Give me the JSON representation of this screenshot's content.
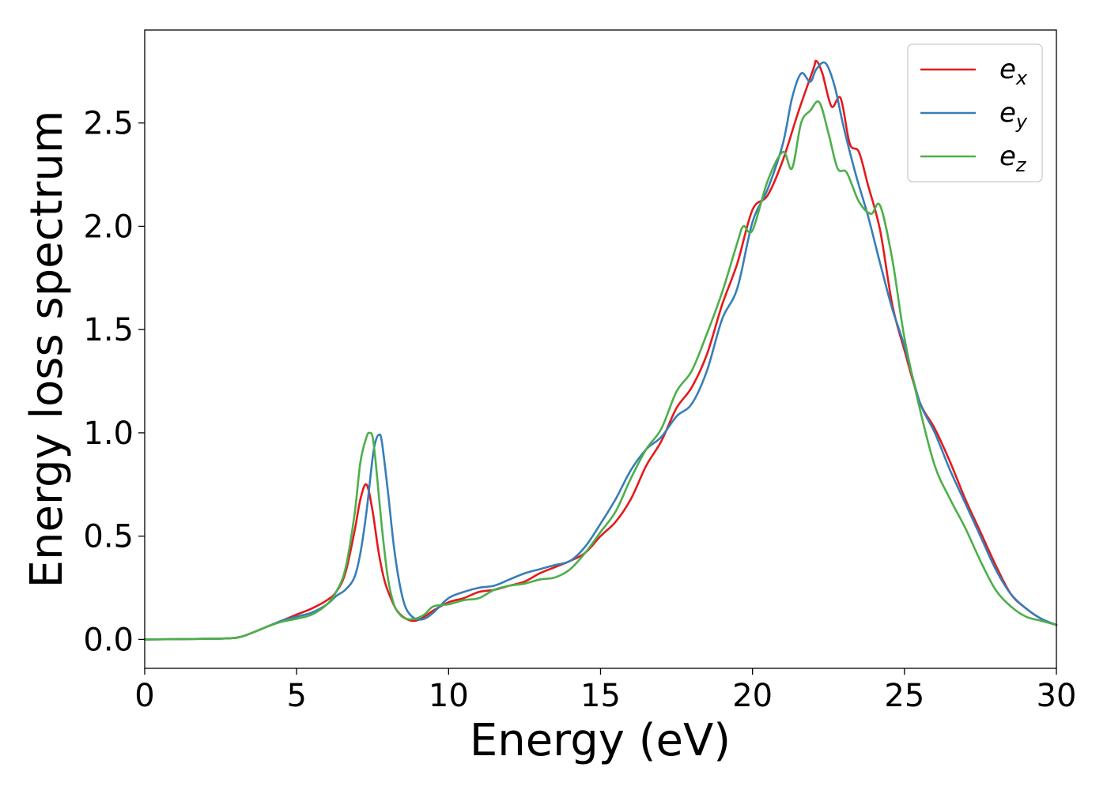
{
  "chart_data": {
    "type": "line",
    "xlabel": "Energy (eV)",
    "ylabel": "Energy loss spectrum",
    "xlim": [
      0,
      30
    ],
    "ylim": [
      -0.14,
      2.95
    ],
    "xticks": [
      0,
      5,
      10,
      15,
      20,
      25,
      30
    ],
    "xtick_labels": [
      "0",
      "5",
      "10",
      "15",
      "20",
      "25",
      "30"
    ],
    "yticks": [
      0.0,
      0.5,
      1.0,
      1.5,
      2.0,
      2.5
    ],
    "ytick_labels": [
      "0.0",
      "0.5",
      "1.0",
      "1.5",
      "2.0",
      "2.5"
    ],
    "grid": false,
    "legend_position": "top-right",
    "series": [
      {
        "name": "e_x",
        "label_base": "e",
        "label_sub": "x",
        "color": "#e41a1c",
        "x": [
          0,
          2,
          3,
          3.5,
          4,
          4.5,
          5,
          5.5,
          6,
          6.3,
          6.6,
          6.9,
          7.1,
          7.3,
          7.5,
          7.7,
          7.9,
          8.1,
          8.3,
          8.6,
          8.9,
          9.2,
          9.5,
          10,
          10.5,
          11,
          11.5,
          12,
          12.5,
          13,
          13.5,
          14,
          14.5,
          15,
          15.5,
          16,
          16.5,
          17,
          17.5,
          18,
          18.5,
          19,
          19.5,
          20,
          20.5,
          21,
          21.5,
          22,
          22.1,
          22.3,
          22.6,
          22.9,
          23.2,
          23.5,
          23.8,
          24.2,
          24.6,
          25,
          25.5,
          26,
          26.5,
          27,
          27.5,
          28,
          28.5,
          29,
          29.5,
          30
        ],
        "y": [
          0,
          0.003,
          0.008,
          0.03,
          0.06,
          0.09,
          0.12,
          0.15,
          0.19,
          0.23,
          0.32,
          0.52,
          0.68,
          0.75,
          0.62,
          0.42,
          0.28,
          0.2,
          0.14,
          0.1,
          0.09,
          0.11,
          0.14,
          0.18,
          0.2,
          0.23,
          0.24,
          0.26,
          0.28,
          0.32,
          0.35,
          0.38,
          0.42,
          0.5,
          0.57,
          0.68,
          0.84,
          0.96,
          1.12,
          1.22,
          1.38,
          1.62,
          1.82,
          2.08,
          2.15,
          2.32,
          2.55,
          2.76,
          2.8,
          2.74,
          2.58,
          2.62,
          2.4,
          2.36,
          2.2,
          1.98,
          1.62,
          1.4,
          1.15,
          1.02,
          0.86,
          0.68,
          0.52,
          0.36,
          0.22,
          0.15,
          0.1,
          0.07
        ]
      },
      {
        "name": "e_y",
        "label_base": "e",
        "label_sub": "y",
        "color": "#377eb8",
        "x": [
          0,
          2,
          3,
          3.5,
          4,
          4.5,
          5,
          5.5,
          6,
          6.3,
          6.6,
          6.9,
          7.1,
          7.3,
          7.5,
          7.6,
          7.7,
          7.8,
          8,
          8.2,
          8.4,
          8.6,
          8.9,
          9.2,
          9.5,
          10,
          10.5,
          11,
          11.5,
          12,
          12.5,
          13,
          13.5,
          14,
          14.5,
          15,
          15.5,
          16,
          16.5,
          17,
          17.5,
          18,
          18.5,
          19,
          19.5,
          20,
          20.5,
          21,
          21.3,
          21.6,
          21.9,
          22.1,
          22.4,
          22.7,
          23,
          23.4,
          23.8,
          24.2,
          24.6,
          25,
          25.5,
          26,
          26.5,
          27,
          27.5,
          28,
          28.5,
          29,
          29.5,
          30
        ],
        "y": [
          0,
          0.003,
          0.008,
          0.03,
          0.06,
          0.09,
          0.11,
          0.13,
          0.17,
          0.21,
          0.24,
          0.3,
          0.42,
          0.62,
          0.88,
          0.96,
          0.99,
          0.96,
          0.72,
          0.45,
          0.26,
          0.15,
          0.1,
          0.1,
          0.13,
          0.2,
          0.23,
          0.25,
          0.26,
          0.29,
          0.32,
          0.34,
          0.36,
          0.38,
          0.45,
          0.56,
          0.68,
          0.82,
          0.92,
          0.98,
          1.08,
          1.14,
          1.3,
          1.55,
          1.7,
          2.02,
          2.18,
          2.4,
          2.62,
          2.74,
          2.7,
          2.76,
          2.79,
          2.68,
          2.48,
          2.25,
          2.05,
          1.82,
          1.6,
          1.42,
          1.15,
          1.0,
          0.82,
          0.66,
          0.5,
          0.34,
          0.22,
          0.15,
          0.1,
          0.07
        ]
      },
      {
        "name": "e_z",
        "label_base": "e",
        "label_sub": "z",
        "color": "#4daf4a",
        "x": [
          0,
          2,
          3,
          3.5,
          4,
          4.5,
          5,
          5.5,
          6,
          6.3,
          6.6,
          6.9,
          7.1,
          7.3,
          7.4,
          7.5,
          7.6,
          7.8,
          8,
          8.2,
          8.4,
          8.6,
          8.9,
          9.2,
          9.5,
          10,
          10.5,
          11,
          11.5,
          12,
          12.5,
          13,
          13.5,
          14,
          14.5,
          15,
          15.5,
          16,
          16.5,
          17,
          17.5,
          18,
          18.5,
          19,
          19.5,
          19.7,
          20,
          20.5,
          21,
          21.3,
          21.6,
          21.9,
          22.2,
          22.5,
          22.8,
          23.1,
          23.5,
          23.9,
          24.2,
          24.6,
          25,
          25.5,
          26,
          26.5,
          27,
          27.5,
          28,
          28.5,
          29,
          29.5,
          30
        ],
        "y": [
          0,
          0.003,
          0.008,
          0.03,
          0.06,
          0.085,
          0.1,
          0.12,
          0.17,
          0.23,
          0.34,
          0.6,
          0.86,
          0.98,
          1.0,
          0.98,
          0.86,
          0.55,
          0.3,
          0.17,
          0.12,
          0.1,
          0.1,
          0.12,
          0.16,
          0.17,
          0.19,
          0.2,
          0.24,
          0.26,
          0.27,
          0.29,
          0.3,
          0.34,
          0.42,
          0.52,
          0.62,
          0.78,
          0.92,
          1.02,
          1.2,
          1.3,
          1.48,
          1.68,
          1.92,
          2.0,
          1.98,
          2.22,
          2.36,
          2.28,
          2.5,
          2.56,
          2.6,
          2.45,
          2.28,
          2.26,
          2.12,
          2.06,
          2.1,
          1.84,
          1.46,
          1.12,
          0.84,
          0.68,
          0.54,
          0.38,
          0.24,
          0.16,
          0.11,
          0.09,
          0.07
        ]
      }
    ]
  }
}
